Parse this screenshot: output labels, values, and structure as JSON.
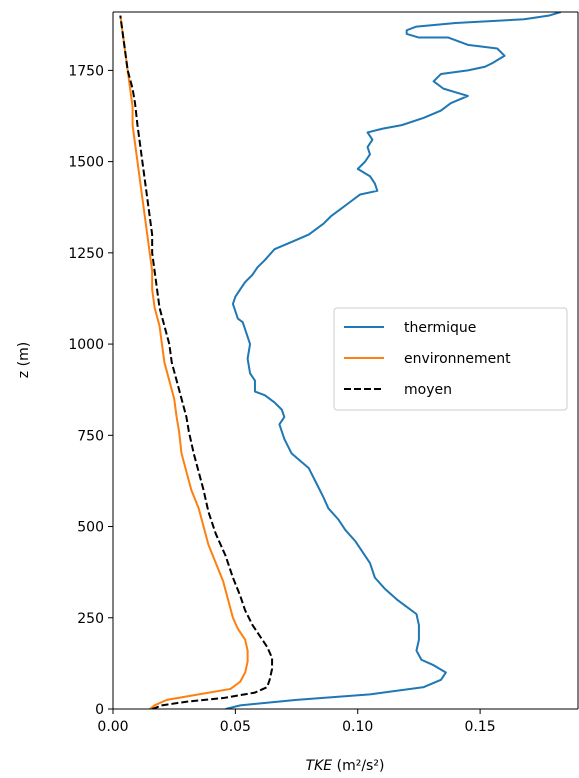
{
  "chart_data": {
    "type": "line",
    "title": "",
    "xlabel_italic": "TKE",
    "xlabel_unit": " (m²/s²)",
    "ylabel": "z (m)",
    "xlim": [
      0.0,
      0.19
    ],
    "ylim": [
      0,
      1910
    ],
    "xticks": [
      0.0,
      0.05,
      0.1,
      0.15
    ],
    "xtick_labels": [
      "0.00",
      "0.05",
      "0.10",
      "0.15"
    ],
    "yticks": [
      0,
      250,
      500,
      750,
      1000,
      1250,
      1500,
      1750
    ],
    "ytick_labels": [
      "0",
      "250",
      "500",
      "750",
      "1000",
      "1250",
      "1500",
      "1750"
    ],
    "grid": false,
    "legend_position": "center-right",
    "series": [
      {
        "name": "thermique",
        "color": "#1f77b4",
        "dash": "solid",
        "points": [
          [
            0.046,
            0
          ],
          [
            0.052,
            10
          ],
          [
            0.075,
            25
          ],
          [
            0.105,
            40
          ],
          [
            0.127,
            60
          ],
          [
            0.134,
            80
          ],
          [
            0.136,
            100
          ],
          [
            0.131,
            120
          ],
          [
            0.126,
            135
          ],
          [
            0.124,
            160
          ],
          [
            0.125,
            190
          ],
          [
            0.125,
            230
          ],
          [
            0.124,
            260
          ],
          [
            0.12,
            280
          ],
          [
            0.116,
            300
          ],
          [
            0.111,
            330
          ],
          [
            0.107,
            360
          ],
          [
            0.105,
            400
          ],
          [
            0.102,
            430
          ],
          [
            0.099,
            460
          ],
          [
            0.095,
            490
          ],
          [
            0.092,
            520
          ],
          [
            0.088,
            550
          ],
          [
            0.086,
            580
          ],
          [
            0.083,
            620
          ],
          [
            0.08,
            660
          ],
          [
            0.073,
            700
          ],
          [
            0.07,
            740
          ],
          [
            0.068,
            780
          ],
          [
            0.07,
            800
          ],
          [
            0.069,
            820
          ],
          [
            0.066,
            840
          ],
          [
            0.062,
            860
          ],
          [
            0.058,
            870
          ],
          [
            0.058,
            900
          ],
          [
            0.056,
            920
          ],
          [
            0.055,
            960
          ],
          [
            0.056,
            1000
          ],
          [
            0.054,
            1040
          ],
          [
            0.053,
            1060
          ],
          [
            0.051,
            1070
          ],
          [
            0.05,
            1090
          ],
          [
            0.049,
            1110
          ],
          [
            0.05,
            1130
          ],
          [
            0.052,
            1150
          ],
          [
            0.054,
            1170
          ],
          [
            0.057,
            1190
          ],
          [
            0.059,
            1210
          ],
          [
            0.062,
            1230
          ],
          [
            0.066,
            1260
          ],
          [
            0.073,
            1280
          ],
          [
            0.08,
            1300
          ],
          [
            0.086,
            1330
          ],
          [
            0.089,
            1350
          ],
          [
            0.093,
            1370
          ],
          [
            0.097,
            1390
          ],
          [
            0.101,
            1410
          ],
          [
            0.108,
            1420
          ],
          [
            0.107,
            1440
          ],
          [
            0.105,
            1460
          ],
          [
            0.1,
            1480
          ],
          [
            0.103,
            1500
          ],
          [
            0.105,
            1520
          ],
          [
            0.104,
            1540
          ],
          [
            0.106,
            1560
          ],
          [
            0.104,
            1580
          ],
          [
            0.11,
            1590
          ],
          [
            0.118,
            1600
          ],
          [
            0.127,
            1620
          ],
          [
            0.134,
            1640
          ],
          [
            0.138,
            1660
          ],
          [
            0.145,
            1680
          ],
          [
            0.14,
            1690
          ],
          [
            0.135,
            1700
          ],
          [
            0.131,
            1720
          ],
          [
            0.134,
            1740
          ],
          [
            0.145,
            1750
          ],
          [
            0.152,
            1760
          ],
          [
            0.155,
            1770
          ],
          [
            0.16,
            1790
          ],
          [
            0.157,
            1810
          ],
          [
            0.145,
            1820
          ],
          [
            0.137,
            1840
          ],
          [
            0.125,
            1840
          ],
          [
            0.12,
            1850
          ],
          [
            0.12,
            1860
          ],
          [
            0.124,
            1870
          ],
          [
            0.14,
            1880
          ],
          [
            0.168,
            1890
          ],
          [
            0.178,
            1900
          ],
          [
            0.183,
            1910
          ]
        ]
      },
      {
        "name": "environnement",
        "color": "#ff7f0e",
        "dash": "solid",
        "points": [
          [
            0.015,
            0
          ],
          [
            0.017,
            10
          ],
          [
            0.022,
            25
          ],
          [
            0.035,
            40
          ],
          [
            0.048,
            55
          ],
          [
            0.052,
            75
          ],
          [
            0.054,
            100
          ],
          [
            0.055,
            130
          ],
          [
            0.055,
            160
          ],
          [
            0.054,
            190
          ],
          [
            0.051,
            220
          ],
          [
            0.049,
            250
          ],
          [
            0.047,
            300
          ],
          [
            0.045,
            350
          ],
          [
            0.042,
            400
          ],
          [
            0.039,
            450
          ],
          [
            0.037,
            500
          ],
          [
            0.035,
            550
          ],
          [
            0.032,
            600
          ],
          [
            0.03,
            650
          ],
          [
            0.028,
            700
          ],
          [
            0.027,
            760
          ],
          [
            0.026,
            800
          ],
          [
            0.025,
            850
          ],
          [
            0.023,
            900
          ],
          [
            0.021,
            950
          ],
          [
            0.02,
            1000
          ],
          [
            0.019,
            1050
          ],
          [
            0.017,
            1100
          ],
          [
            0.016,
            1150
          ],
          [
            0.016,
            1200
          ],
          [
            0.015,
            1250
          ],
          [
            0.014,
            1300
          ],
          [
            0.013,
            1350
          ],
          [
            0.012,
            1400
          ],
          [
            0.011,
            1450
          ],
          [
            0.01,
            1500
          ],
          [
            0.009,
            1550
          ],
          [
            0.008,
            1600
          ],
          [
            0.008,
            1650
          ],
          [
            0.007,
            1700
          ],
          [
            0.006,
            1750
          ],
          [
            0.005,
            1800
          ],
          [
            0.004,
            1850
          ],
          [
            0.003,
            1900
          ]
        ]
      },
      {
        "name": "moyen",
        "color": "#000000",
        "dash": "dashed",
        "points": [
          [
            0.016,
            0
          ],
          [
            0.02,
            10
          ],
          [
            0.03,
            20
          ],
          [
            0.045,
            30
          ],
          [
            0.058,
            45
          ],
          [
            0.063,
            60
          ],
          [
            0.064,
            80
          ],
          [
            0.065,
            110
          ],
          [
            0.065,
            140
          ],
          [
            0.063,
            170
          ],
          [
            0.06,
            200
          ],
          [
            0.057,
            230
          ],
          [
            0.054,
            270
          ],
          [
            0.052,
            310
          ],
          [
            0.049,
            360
          ],
          [
            0.046,
            420
          ],
          [
            0.042,
            480
          ],
          [
            0.039,
            540
          ],
          [
            0.037,
            600
          ],
          [
            0.035,
            650
          ],
          [
            0.033,
            700
          ],
          [
            0.031,
            760
          ],
          [
            0.03,
            800
          ],
          [
            0.028,
            850
          ],
          [
            0.026,
            900
          ],
          [
            0.024,
            950
          ],
          [
            0.023,
            1000
          ],
          [
            0.021,
            1050
          ],
          [
            0.019,
            1100
          ],
          [
            0.018,
            1150
          ],
          [
            0.017,
            1200
          ],
          [
            0.016,
            1250
          ],
          [
            0.016,
            1300
          ],
          [
            0.015,
            1350
          ],
          [
            0.014,
            1400
          ],
          [
            0.013,
            1450
          ],
          [
            0.012,
            1500
          ],
          [
            0.011,
            1550
          ],
          [
            0.01,
            1600
          ],
          [
            0.009,
            1660
          ],
          [
            0.008,
            1700
          ],
          [
            0.006,
            1750
          ],
          [
            0.005,
            1800
          ],
          [
            0.004,
            1850
          ],
          [
            0.003,
            1900
          ]
        ]
      }
    ]
  }
}
